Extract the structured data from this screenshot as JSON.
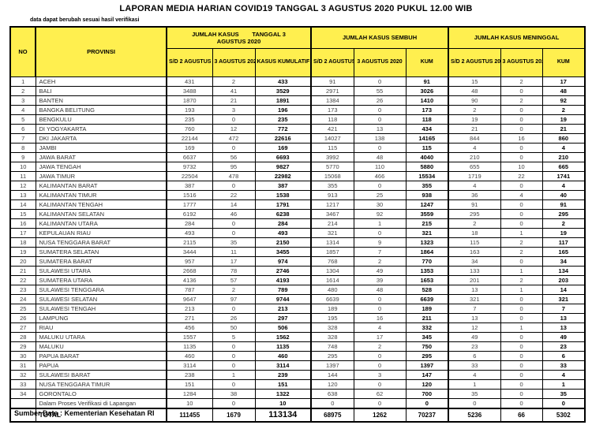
{
  "page": {
    "title": "LAPORAN MEDIA HARIAN COVID19 TANGGAL 3 AGUSTUS 2020 PUKUL 12.00 WIB",
    "note": "data dapat berubah sesuai hasil verifikasi",
    "source": "Sumber Data : Kementerian Kesehatan RI"
  },
  "colors": {
    "header_yellow": "#ffef4f",
    "border": "#000000"
  },
  "table": {
    "columns": {
      "no": "NO",
      "provinsi": "PROVINSI",
      "kasus_group": "JUMLAH KASUS        TANGGAL 3\nAGUSTUS 2020",
      "sembuh_group": "JUMLAH KASUS SEMBUH",
      "meninggal_group": "JUMLAH KASUS MENINGGAL",
      "kasus_sub": [
        "S/D 2 AGUSTUS 2020",
        "3 AGUSTUS 2020",
        "KASUS KUMULATIF"
      ],
      "sembuh_sub": [
        "S/D 2 AGUSTUS 2020",
        "3 AGUSTUS 2020",
        "KUM"
      ],
      "meninggal_sub": [
        "S/D 2 AGUSTUS 2020",
        "3 AGUSTUS 2020",
        "KUM"
      ]
    },
    "rows": [
      [
        1,
        "ACEH",
        431,
        2,
        433,
        91,
        0,
        91,
        15,
        2,
        17
      ],
      [
        2,
        "BALI",
        3488,
        41,
        3529,
        2971,
        55,
        3026,
        48,
        0,
        48
      ],
      [
        3,
        "BANTEN",
        1870,
        21,
        1891,
        1384,
        26,
        1410,
        90,
        2,
        92
      ],
      [
        4,
        "BANGKA BELITUNG",
        193,
        3,
        196,
        173,
        0,
        173,
        2,
        0,
        2
      ],
      [
        5,
        "BENGKULU",
        235,
        0,
        235,
        118,
        0,
        118,
        19,
        0,
        19
      ],
      [
        6,
        "DI YOGYAKARTA",
        760,
        12,
        772,
        421,
        13,
        434,
        21,
        0,
        21
      ],
      [
        7,
        "DKI JAKARTA",
        22144,
        472,
        22616,
        14027,
        138,
        14165,
        844,
        16,
        860
      ],
      [
        8,
        "JAMBI",
        169,
        0,
        169,
        115,
        0,
        115,
        4,
        0,
        4
      ],
      [
        9,
        "JAWA BARAT",
        6637,
        56,
        6693,
        3992,
        48,
        4040,
        210,
        0,
        210
      ],
      [
        10,
        "JAWA TENGAH",
        9732,
        95,
        9827,
        5770,
        110,
        5880,
        655,
        10,
        665
      ],
      [
        11,
        "JAWA TIMUR",
        22504,
        478,
        22982,
        15068,
        466,
        15534,
        1719,
        22,
        1741
      ],
      [
        12,
        "KALIMANTAN BARAT",
        387,
        0,
        387,
        355,
        0,
        355,
        4,
        0,
        4
      ],
      [
        13,
        "KALIMANTAN TIMUR",
        1516,
        22,
        1538,
        913,
        25,
        938,
        36,
        4,
        40
      ],
      [
        14,
        "KALIMANTAN TENGAH",
        1777,
        14,
        1791,
        1217,
        30,
        1247,
        91,
        0,
        91
      ],
      [
        15,
        "KALIMANTAN SELATAN",
        6192,
        46,
        6238,
        3467,
        92,
        3559,
        295,
        0,
        295
      ],
      [
        16,
        "KALIMANTAN UTARA",
        284,
        0,
        284,
        214,
        1,
        215,
        2,
        0,
        2
      ],
      [
        17,
        "KEPULAUAN RIAU",
        493,
        0,
        493,
        321,
        0,
        321,
        18,
        1,
        19
      ],
      [
        18,
        "NUSA TENGGARA BARAT",
        2115,
        35,
        2150,
        1314,
        9,
        1323,
        115,
        2,
        117
      ],
      [
        19,
        "SUMATERA SELATAN",
        3444,
        11,
        3455,
        1857,
        7,
        1864,
        163,
        2,
        165
      ],
      [
        20,
        "SUMATERA BARAT",
        957,
        17,
        974,
        768,
        2,
        770,
        34,
        0,
        34
      ],
      [
        21,
        "SULAWESI UTARA",
        2668,
        78,
        2746,
        1304,
        49,
        1353,
        133,
        1,
        134
      ],
      [
        22,
        "SUMATERA UTARA",
        4136,
        57,
        4193,
        1614,
        39,
        1653,
        201,
        2,
        203
      ],
      [
        23,
        "SULAWESI TENGGARA",
        787,
        2,
        789,
        480,
        48,
        528,
        13,
        1,
        14
      ],
      [
        24,
        "SULAWESI SELATAN",
        9647,
        97,
        9744,
        6639,
        0,
        6639,
        321,
        0,
        321
      ],
      [
        25,
        "SULAWESI TENGAH",
        213,
        0,
        213,
        189,
        0,
        189,
        7,
        0,
        7
      ],
      [
        26,
        "LAMPUNG",
        271,
        26,
        297,
        195,
        16,
        211,
        13,
        0,
        13
      ],
      [
        27,
        "RIAU",
        456,
        50,
        506,
        328,
        4,
        332,
        12,
        1,
        13
      ],
      [
        28,
        "MALUKU UTARA",
        1557,
        5,
        1562,
        328,
        17,
        345,
        49,
        0,
        49
      ],
      [
        29,
        "MALUKU",
        1135,
        0,
        1135,
        748,
        2,
        750,
        23,
        0,
        23
      ],
      [
        30,
        "PAPUA BARAT",
        460,
        0,
        460,
        295,
        0,
        295,
        6,
        0,
        6
      ],
      [
        31,
        "PAPUA",
        3114,
        0,
        3114,
        1397,
        0,
        1397,
        33,
        0,
        33
      ],
      [
        32,
        "SULAWESI BARAT",
        238,
        1,
        239,
        144,
        3,
        147,
        4,
        0,
        4
      ],
      [
        33,
        "NUSA TENGGARA TIMUR",
        151,
        0,
        151,
        120,
        0,
        120,
        1,
        0,
        1
      ],
      [
        34,
        "GORONTALO",
        1284,
        38,
        1322,
        638,
        62,
        700,
        35,
        0,
        35
      ]
    ],
    "verification_row": [
      "",
      "Dalam Proses Verifikasi di Lapangan",
      10,
      0,
      10,
      0,
      0,
      0,
      0,
      0,
      0
    ],
    "total_row": [
      "",
      "TOTAL",
      111455,
      1679,
      113134,
      68975,
      1262,
      70237,
      5236,
      66,
      5302
    ]
  }
}
